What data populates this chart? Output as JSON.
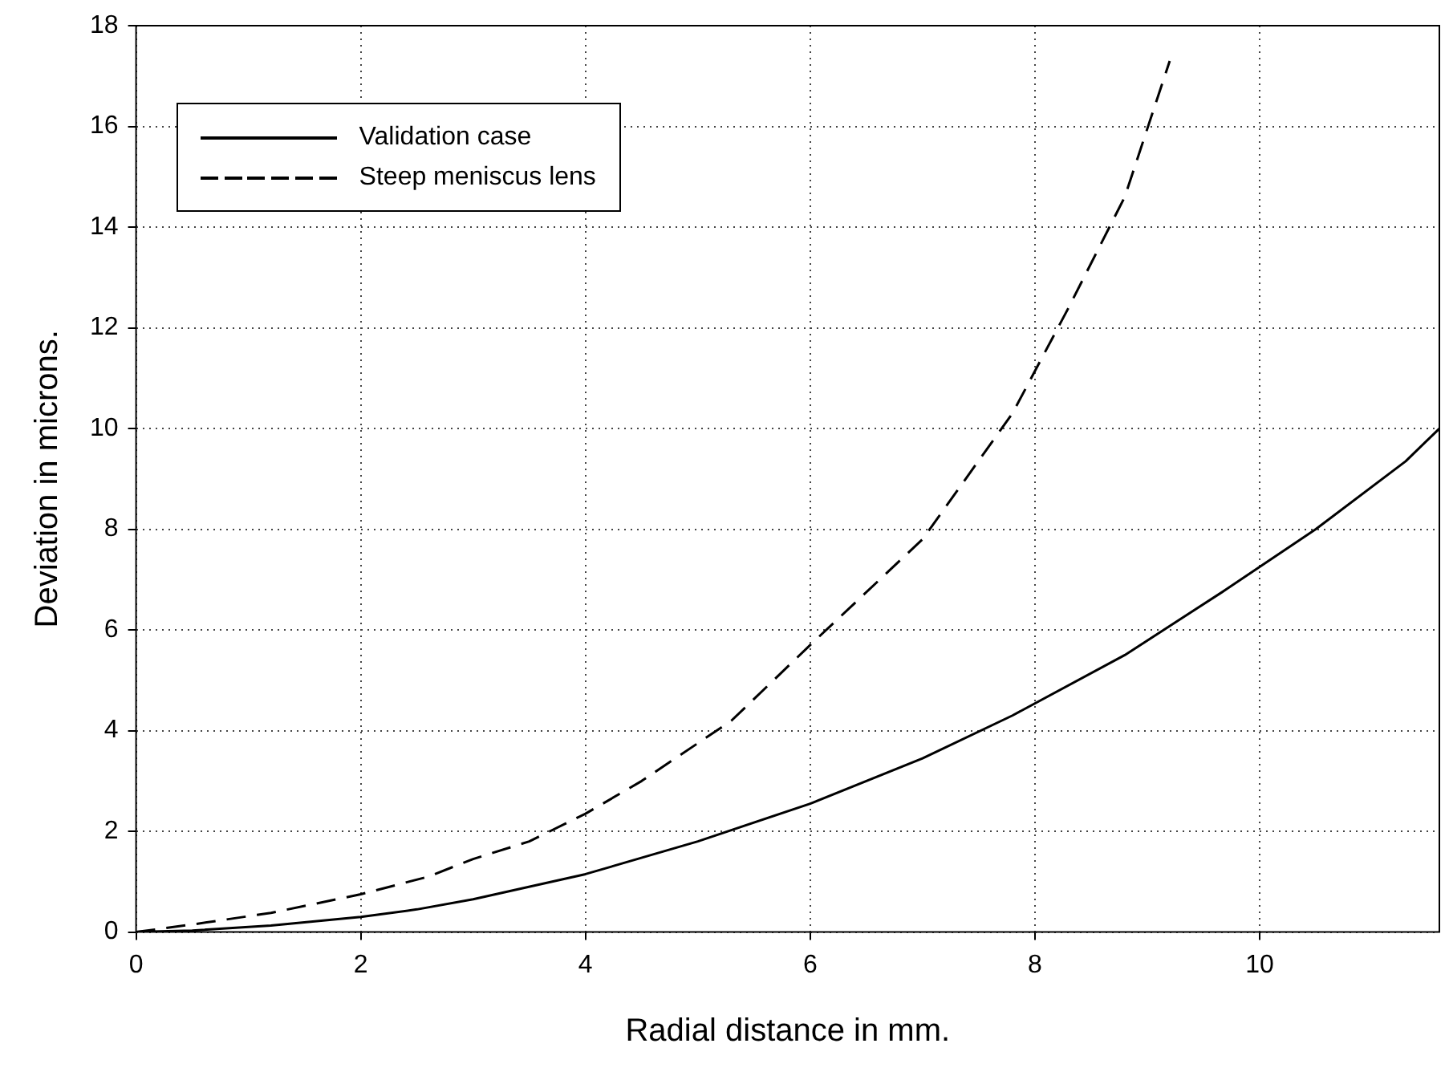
{
  "chart_data": {
    "type": "line",
    "xlabel": "Radial distance in mm.",
    "ylabel": "Deviation in microns.",
    "xlim": [
      0,
      11.6
    ],
    "xticks": [
      0,
      2,
      4,
      6,
      8,
      10
    ],
    "ylim": [
      0,
      18
    ],
    "yticks": [
      0,
      2,
      4,
      6,
      8,
      10,
      12,
      14,
      16,
      18
    ],
    "grid": true,
    "legend": "top left",
    "marker": "none",
    "series": [
      {
        "name": "Validation case",
        "color": "#000000",
        "line_style": "solid",
        "x": [
          0,
          0.5,
          1.2,
          2,
          2.5,
          3,
          4,
          5,
          6,
          7,
          7.8,
          8.8,
          9.7,
          10.5,
          11.3,
          11.6
        ],
        "values": [
          0,
          0.03,
          0.13,
          0.3,
          0.45,
          0.65,
          1.15,
          1.8,
          2.55,
          3.45,
          4.3,
          5.5,
          6.8,
          8.0,
          9.35,
          10.0
        ]
      },
      {
        "name": "Steep meniscus lens",
        "color": "#000000",
        "line_style": "dashed",
        "x": [
          0,
          0.5,
          1.2,
          2,
          2.6,
          3,
          3.5,
          4,
          4.5,
          5.3,
          6,
          7,
          7.8,
          8.3,
          8.8,
          9.2
        ],
        "values": [
          0,
          0.15,
          0.38,
          0.75,
          1.1,
          1.45,
          1.8,
          2.35,
          3.0,
          4.2,
          5.7,
          7.8,
          10.3,
          12.4,
          14.6,
          17.3
        ]
      }
    ]
  }
}
